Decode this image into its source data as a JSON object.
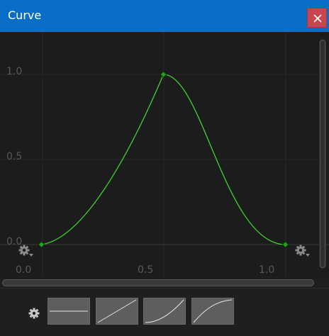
{
  "window": {
    "title": "Curve"
  },
  "axes": {
    "y_ticks": [
      "1.0",
      "0.5",
      "0.0"
    ],
    "x_ticks": [
      "0.0",
      "0.5",
      "1.0"
    ]
  },
  "curve": {
    "color": "#3ed12f",
    "keys": [
      {
        "t": 0.08,
        "value": 0.0
      },
      {
        "t": 0.58,
        "value": 1.0
      },
      {
        "t": 1.08,
        "value": 0.0
      }
    ]
  },
  "presets": [
    {
      "name": "constant"
    },
    {
      "name": "linear"
    },
    {
      "name": "ease-in"
    },
    {
      "name": "ease-out"
    }
  ],
  "icons": {
    "close": "close-icon",
    "key_menu": "gear-dropdown-icon",
    "presets_menu": "gear-icon"
  }
}
